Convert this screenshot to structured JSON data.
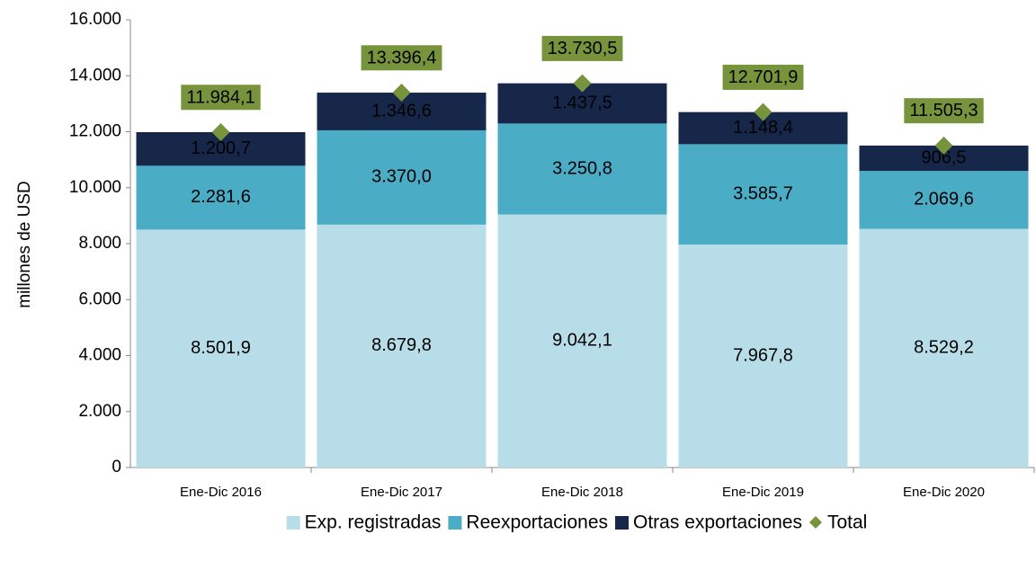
{
  "chart_data": {
    "type": "bar",
    "stacked": true,
    "y_label": "millones de  USD",
    "categories": [
      "Ene-Dic 2016",
      "Ene-Dic 2017",
      "Ene-Dic 2018",
      "Ene-Dic 2019",
      "Ene-Dic 2020"
    ],
    "series": [
      {
        "name": "Exp. registradas",
        "color": "#b7dde8",
        "label_color": "#000000",
        "values": [
          8501.9,
          8679.8,
          9042.1,
          7967.8,
          8529.2
        ],
        "value_labels": [
          "8.501,9",
          "8.679,8",
          "9.042,1",
          "7.967,8",
          "8.529,2"
        ]
      },
      {
        "name": "Reexportaciones",
        "color": "#4bacc6",
        "label_color": "#ffffff",
        "values": [
          2281.6,
          3370.0,
          3250.8,
          3585.7,
          2069.6
        ],
        "value_labels": [
          "2.281,6",
          "3.370,0",
          "3.250,8",
          "3.585,7",
          "2.069,6"
        ]
      },
      {
        "name": "Otras exportaciones",
        "color": "#17274a",
        "label_color": "#ffffff",
        "values": [
          1200.7,
          1346.6,
          1437.5,
          1148.4,
          906.5
        ],
        "value_labels": [
          "1.200,7",
          "1.346,6",
          "1.437,5",
          "1.148,4",
          "906,5"
        ]
      },
      {
        "name": "Total",
        "type": "marker",
        "marker": "diamond",
        "color": "#77933c",
        "label_color": "#000000",
        "values": [
          11984.1,
          13396.4,
          13730.5,
          12701.9,
          11505.3
        ],
        "value_labels": [
          "11.984,1",
          "13.396,4",
          "13.730,5",
          "12.701,9",
          "11.505,3"
        ]
      }
    ],
    "ylim": [
      0,
      16000
    ],
    "yticks": [
      0,
      {
        "value": 2000,
        "label": "2.000"
      },
      {
        "value": 4000,
        "label": "4.000"
      },
      {
        "value": 6000,
        "label": "6.000"
      },
      {
        "value": 8000,
        "label": "8.000"
      },
      {
        "value": 10000,
        "label": "10.000"
      },
      {
        "value": 12000,
        "label": "12.000"
      },
      {
        "value": 14000,
        "label": "14.000"
      },
      {
        "value": 16000,
        "label": "16.000"
      }
    ],
    "legend": "bottom"
  }
}
